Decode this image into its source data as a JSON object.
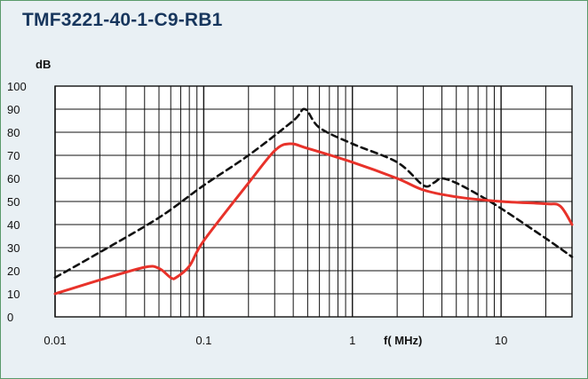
{
  "chart_data": {
    "type": "line",
    "title": "TMF3221-40-1-C9-RB1",
    "ylabel": "dB",
    "xlabel": "f( MHz)",
    "x_scale": "log",
    "xlim": [
      0.01,
      30
    ],
    "ylim": [
      0,
      100
    ],
    "x_tick_labels": [
      "0.01",
      "0.1",
      "1",
      "10"
    ],
    "y_tick_labels": [
      "0",
      "10",
      "20",
      "30",
      "40",
      "50",
      "60",
      "70",
      "80",
      "90",
      "100"
    ],
    "grid": true,
    "series": [
      {
        "style": "dashed",
        "color": "#111111",
        "points": [
          [
            0.01,
            17
          ],
          [
            0.02,
            28
          ],
          [
            0.05,
            43
          ],
          [
            0.1,
            57
          ],
          [
            0.2,
            70
          ],
          [
            0.4,
            85
          ],
          [
            0.48,
            90
          ],
          [
            0.6,
            82
          ],
          [
            1,
            75
          ],
          [
            2,
            67
          ],
          [
            3,
            57
          ],
          [
            3.5,
            58
          ],
          [
            4,
            60
          ],
          [
            5,
            58
          ],
          [
            7,
            53
          ],
          [
            10,
            47
          ],
          [
            20,
            34
          ],
          [
            30,
            26
          ]
        ]
      },
      {
        "style": "solid",
        "color": "#e8322a",
        "points": [
          [
            0.01,
            10
          ],
          [
            0.02,
            16
          ],
          [
            0.04,
            21.5
          ],
          [
            0.05,
            21
          ],
          [
            0.06,
            17
          ],
          [
            0.065,
            17
          ],
          [
            0.08,
            22
          ],
          [
            0.1,
            33
          ],
          [
            0.2,
            58
          ],
          [
            0.3,
            72
          ],
          [
            0.38,
            75
          ],
          [
            0.5,
            73
          ],
          [
            1,
            67
          ],
          [
            2,
            60
          ],
          [
            3,
            55
          ],
          [
            5,
            52
          ],
          [
            10,
            50
          ],
          [
            20,
            49
          ],
          [
            25,
            48
          ],
          [
            30,
            40
          ]
        ]
      }
    ]
  }
}
